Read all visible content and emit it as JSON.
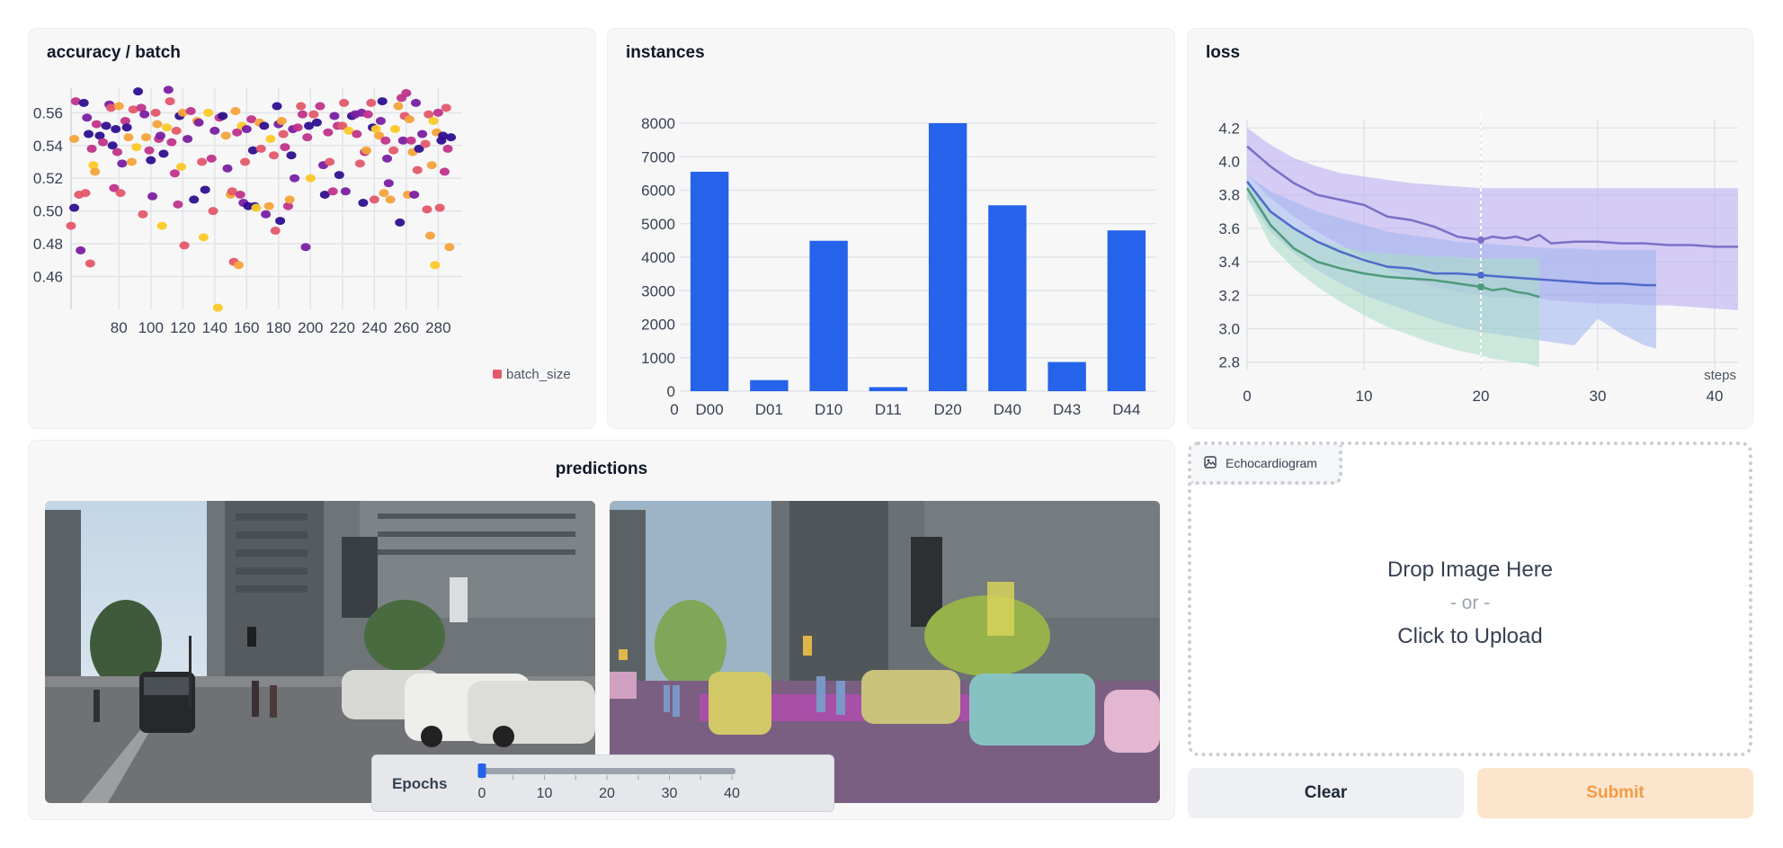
{
  "panels": {
    "accuracy": {
      "title": "accuracy / batch",
      "legend_label": "batch_size"
    },
    "instances": {
      "title": "instances"
    },
    "loss": {
      "title": "loss",
      "x_label": "steps"
    },
    "predictions": {
      "title": "predictions"
    }
  },
  "chart_data": [
    {
      "type": "scatter",
      "title": "accuracy / batch",
      "legend": [
        "batch_size"
      ],
      "xlim": [
        50,
        295
      ],
      "ylim": [
        0.44,
        0.575
      ],
      "x_ticks": [
        80,
        100,
        120,
        140,
        160,
        180,
        200,
        220,
        240,
        260,
        280
      ],
      "y_ticks": [
        "0.46",
        "0.48",
        "0.50",
        "0.52",
        "0.54",
        "0.56"
      ],
      "palette": [
        "#2e0f8f",
        "#7a1fa2",
        "#c0338a",
        "#e3596b",
        "#f4a33a",
        "#fbc926"
      ],
      "points": [
        [
          50,
          0.491,
          3
        ],
        [
          52,
          0.544,
          4
        ],
        [
          52,
          0.502,
          0
        ],
        [
          53,
          0.567,
          2
        ],
        [
          55,
          0.51,
          3
        ],
        [
          56,
          0.476,
          1
        ],
        [
          58,
          0.566,
          0
        ],
        [
          59,
          0.511,
          3
        ],
        [
          60,
          0.557,
          1
        ],
        [
          61,
          0.547,
          0
        ],
        [
          62,
          0.468,
          3
        ],
        [
          63,
          0.538,
          2
        ],
        [
          64,
          0.528,
          5
        ],
        [
          65,
          0.524,
          4
        ],
        [
          66,
          0.553,
          2
        ],
        [
          68,
          0.546,
          0
        ],
        [
          70,
          0.542,
          2
        ],
        [
          72,
          0.552,
          0
        ],
        [
          74,
          0.565,
          1
        ],
        [
          75,
          0.563,
          3
        ],
        [
          76,
          0.54,
          0
        ],
        [
          77,
          0.514,
          2
        ],
        [
          78,
          0.55,
          0
        ],
        [
          79,
          0.536,
          2
        ],
        [
          80,
          0.564,
          4
        ],
        [
          81,
          0.511,
          3
        ],
        [
          82,
          0.529,
          1
        ],
        [
          84,
          0.555,
          2
        ],
        [
          85,
          0.551,
          0
        ],
        [
          86,
          0.545,
          4
        ],
        [
          88,
          0.53,
          4
        ],
        [
          89,
          0.562,
          3
        ],
        [
          91,
          0.539,
          5
        ],
        [
          92,
          0.573,
          0
        ],
        [
          94,
          0.563,
          2
        ],
        [
          95,
          0.498,
          3
        ],
        [
          96,
          0.559,
          1
        ],
        [
          97,
          0.545,
          4
        ],
        [
          99,
          0.537,
          2
        ],
        [
          100,
          0.531,
          0
        ],
        [
          101,
          0.509,
          1
        ],
        [
          103,
          0.56,
          3
        ],
        [
          104,
          0.553,
          4
        ],
        [
          105,
          0.544,
          2
        ],
        [
          106,
          0.546,
          1
        ],
        [
          107,
          0.491,
          5
        ],
        [
          108,
          0.535,
          0
        ],
        [
          110,
          0.551,
          5
        ],
        [
          111,
          0.574,
          1
        ],
        [
          112,
          0.567,
          3
        ],
        [
          113,
          0.542,
          2
        ],
        [
          115,
          0.523,
          2
        ],
        [
          116,
          0.549,
          3
        ],
        [
          117,
          0.504,
          2
        ],
        [
          118,
          0.558,
          0
        ],
        [
          119,
          0.527,
          5
        ],
        [
          120,
          0.56,
          4
        ],
        [
          121,
          0.479,
          3
        ],
        [
          123,
          0.544,
          1
        ],
        [
          125,
          0.561,
          2
        ],
        [
          127,
          0.507,
          0
        ],
        [
          129,
          0.555,
          4
        ],
        [
          130,
          0.554,
          1
        ],
        [
          132,
          0.53,
          3
        ],
        [
          133,
          0.484,
          5
        ],
        [
          134,
          0.513,
          0
        ],
        [
          136,
          0.56,
          5
        ],
        [
          138,
          0.532,
          2
        ],
        [
          139,
          0.5,
          3
        ],
        [
          140,
          0.549,
          1
        ],
        [
          142,
          0.441,
          5
        ],
        [
          143,
          0.557,
          2
        ],
        [
          145,
          0.558,
          0
        ],
        [
          147,
          0.546,
          4
        ],
        [
          148,
          0.526,
          1
        ],
        [
          150,
          0.51,
          4
        ],
        [
          151,
          0.512,
          3
        ],
        [
          152,
          0.469,
          3
        ],
        [
          153,
          0.561,
          4
        ],
        [
          154,
          0.548,
          2
        ],
        [
          155,
          0.467,
          4
        ],
        [
          156,
          0.51,
          2
        ],
        [
          157,
          0.552,
          5
        ],
        [
          158,
          0.505,
          1
        ],
        [
          159,
          0.53,
          3
        ],
        [
          160,
          0.55,
          1
        ],
        [
          161,
          0.503,
          0
        ],
        [
          163,
          0.556,
          2
        ],
        [
          164,
          0.537,
          0
        ],
        [
          165,
          0.503,
          0
        ],
        [
          166,
          0.502,
          5
        ],
        [
          168,
          0.554,
          4
        ],
        [
          169,
          0.538,
          3
        ],
        [
          171,
          0.552,
          0
        ],
        [
          172,
          0.498,
          1
        ],
        [
          174,
          0.503,
          4
        ],
        [
          175,
          0.544,
          5
        ],
        [
          177,
          0.534,
          3
        ],
        [
          178,
          0.488,
          3
        ],
        [
          179,
          0.564,
          0
        ],
        [
          180,
          0.553,
          1
        ],
        [
          181,
          0.494,
          0
        ],
        [
          182,
          0.555,
          4
        ],
        [
          183,
          0.547,
          3
        ],
        [
          184,
          0.539,
          2
        ],
        [
          186,
          0.503,
          2
        ],
        [
          187,
          0.507,
          4
        ],
        [
          188,
          0.534,
          0
        ],
        [
          189,
          0.55,
          1
        ],
        [
          190,
          0.52,
          1
        ],
        [
          192,
          0.551,
          2
        ],
        [
          194,
          0.564,
          3
        ],
        [
          195,
          0.559,
          2
        ],
        [
          197,
          0.478,
          1
        ],
        [
          198,
          0.545,
          2
        ],
        [
          199,
          0.552,
          0
        ],
        [
          200,
          0.52,
          5
        ],
        [
          202,
          0.559,
          3
        ],
        [
          204,
          0.554,
          0
        ],
        [
          206,
          0.564,
          2
        ],
        [
          208,
          0.528,
          1
        ],
        [
          209,
          0.51,
          0
        ],
        [
          211,
          0.548,
          2
        ],
        [
          212,
          0.53,
          3
        ],
        [
          214,
          0.512,
          2
        ],
        [
          215,
          0.558,
          1
        ],
        [
          217,
          0.552,
          2
        ],
        [
          218,
          0.522,
          0
        ],
        [
          220,
          0.552,
          3
        ],
        [
          221,
          0.566,
          3
        ],
        [
          222,
          0.512,
          1
        ],
        [
          224,
          0.549,
          5
        ],
        [
          226,
          0.558,
          0
        ],
        [
          228,
          0.559,
          1
        ],
        [
          229,
          0.547,
          2
        ],
        [
          231,
          0.529,
          3
        ],
        [
          232,
          0.56,
          1
        ],
        [
          233,
          0.505,
          0
        ],
        [
          234,
          0.536,
          2
        ],
        [
          235,
          0.537,
          4
        ],
        [
          236,
          0.559,
          2
        ],
        [
          238,
          0.566,
          3
        ],
        [
          239,
          0.551,
          0
        ],
        [
          240,
          0.507,
          3
        ],
        [
          241,
          0.55,
          5
        ],
        [
          243,
          0.546,
          4
        ],
        [
          244,
          0.555,
          1
        ],
        [
          245,
          0.567,
          0
        ],
        [
          246,
          0.511,
          4
        ],
        [
          247,
          0.543,
          2
        ],
        [
          248,
          0.532,
          1
        ],
        [
          249,
          0.517,
          1
        ],
        [
          250,
          0.507,
          4
        ],
        [
          252,
          0.537,
          3
        ],
        [
          253,
          0.55,
          5
        ],
        [
          255,
          0.564,
          4
        ],
        [
          256,
          0.493,
          0
        ],
        [
          257,
          0.569,
          2
        ],
        [
          258,
          0.543,
          1
        ],
        [
          259,
          0.558,
          3
        ],
        [
          260,
          0.572,
          2
        ],
        [
          261,
          0.51,
          4
        ],
        [
          262,
          0.556,
          4
        ],
        [
          263,
          0.543,
          2
        ],
        [
          264,
          0.536,
          4
        ],
        [
          265,
          0.51,
          1
        ],
        [
          266,
          0.566,
          1
        ],
        [
          267,
          0.525,
          3
        ],
        [
          268,
          0.538,
          0
        ],
        [
          270,
          0.547,
          1
        ],
        [
          272,
          0.541,
          3
        ],
        [
          273,
          0.501,
          3
        ],
        [
          274,
          0.559,
          3
        ],
        [
          275,
          0.485,
          4
        ],
        [
          276,
          0.528,
          4
        ],
        [
          277,
          0.555,
          5
        ],
        [
          278,
          0.467,
          5
        ],
        [
          279,
          0.548,
          4
        ],
        [
          280,
          0.56,
          2
        ],
        [
          281,
          0.502,
          3
        ],
        [
          282,
          0.543,
          0
        ],
        [
          283,
          0.546,
          0
        ],
        [
          284,
          0.524,
          2
        ],
        [
          285,
          0.563,
          3
        ],
        [
          286,
          0.538,
          2
        ],
        [
          287,
          0.478,
          4
        ],
        [
          288,
          0.545,
          0
        ]
      ]
    },
    {
      "type": "bar",
      "title": "instances",
      "categories": [
        "D00",
        "D01",
        "D10",
        "D11",
        "D20",
        "D40",
        "D43",
        "D44"
      ],
      "values": [
        6550,
        330,
        4490,
        120,
        8000,
        5550,
        870,
        4800
      ],
      "ylim": [
        0,
        8000
      ],
      "y_ticks": [
        0,
        1000,
        2000,
        3000,
        4000,
        5000,
        6000,
        7000,
        8000
      ],
      "x_zero_label": "0",
      "color": "#2563eb"
    },
    {
      "type": "line",
      "title": "loss",
      "xlabel": "steps",
      "xlim": [
        0,
        42
      ],
      "ylim": [
        2.75,
        4.25
      ],
      "x_ticks": [
        0,
        10,
        20,
        30,
        40
      ],
      "y_ticks": [
        "2.8",
        "3.0",
        "3.2",
        "3.4",
        "3.6",
        "3.8",
        "4.0",
        "4.2"
      ],
      "cursor_x": 20,
      "series": [
        {
          "color": "#7c6fc7",
          "band_color": "#b8a9f0",
          "x": [
            0,
            2,
            4,
            6,
            8,
            10,
            12,
            14,
            16,
            18,
            20,
            21,
            22,
            23,
            24,
            25,
            26,
            28,
            30,
            32,
            34,
            36,
            38,
            40,
            42
          ],
          "y": [
            4.09,
            3.97,
            3.87,
            3.8,
            3.77,
            3.74,
            3.67,
            3.65,
            3.61,
            3.55,
            3.53,
            3.55,
            3.54,
            3.55,
            3.53,
            3.56,
            3.51,
            3.52,
            3.52,
            3.51,
            3.51,
            3.5,
            3.5,
            3.49,
            3.49
          ],
          "upper": [
            4.2,
            4.1,
            4.02,
            3.97,
            3.93,
            3.91,
            3.89,
            3.87,
            3.86,
            3.85,
            3.84,
            3.84,
            3.84,
            3.84,
            3.84,
            3.84,
            3.84,
            3.84,
            3.84,
            3.84,
            3.84,
            3.84,
            3.84,
            3.84,
            3.84
          ],
          "lower": [
            3.92,
            3.78,
            3.67,
            3.58,
            3.5,
            3.43,
            3.36,
            3.3,
            3.25,
            3.22,
            3.2,
            3.19,
            3.19,
            3.19,
            3.18,
            3.18,
            3.17,
            3.16,
            3.15,
            3.15,
            3.14,
            3.14,
            3.13,
            3.12,
            3.11
          ]
        },
        {
          "color": "#4f6ac8",
          "band_color": "#9fb4ee",
          "x": [
            0,
            2,
            4,
            6,
            8,
            10,
            12,
            14,
            16,
            18,
            20,
            22,
            24,
            26,
            28,
            30,
            32,
            34,
            35
          ],
          "y": [
            3.88,
            3.7,
            3.6,
            3.52,
            3.46,
            3.41,
            3.37,
            3.36,
            3.33,
            3.33,
            3.32,
            3.31,
            3.3,
            3.29,
            3.28,
            3.27,
            3.27,
            3.26,
            3.26
          ],
          "upper": [
            3.92,
            3.82,
            3.76,
            3.7,
            3.66,
            3.62,
            3.58,
            3.56,
            3.54,
            3.52,
            3.51,
            3.5,
            3.49,
            3.48,
            3.48,
            3.47,
            3.47,
            3.47,
            3.47
          ],
          "lower": [
            3.78,
            3.58,
            3.45,
            3.35,
            3.27,
            3.2,
            3.15,
            3.1,
            3.05,
            3.01,
            2.98,
            2.96,
            2.94,
            2.92,
            2.9,
            3.06,
            2.97,
            2.9,
            2.88
          ]
        },
        {
          "color": "#4e9a7a",
          "band_color": "#a9dcc4",
          "x": [
            0,
            2,
            4,
            6,
            8,
            10,
            12,
            14,
            16,
            18,
            20,
            21,
            22,
            23,
            24,
            25
          ],
          "y": [
            3.84,
            3.62,
            3.48,
            3.4,
            3.36,
            3.33,
            3.31,
            3.3,
            3.29,
            3.27,
            3.25,
            3.23,
            3.24,
            3.22,
            3.21,
            3.19
          ],
          "upper": [
            3.86,
            3.7,
            3.6,
            3.53,
            3.49,
            3.46,
            3.45,
            3.44,
            3.43,
            3.43,
            3.42,
            3.42,
            3.42,
            3.42,
            3.42,
            3.42
          ],
          "lower": [
            3.78,
            3.5,
            3.36,
            3.25,
            3.16,
            3.08,
            3.01,
            2.96,
            2.91,
            2.87,
            2.84,
            2.82,
            2.81,
            2.8,
            2.79,
            2.77
          ]
        }
      ]
    }
  ],
  "slider": {
    "label": "Epochs",
    "value": 0,
    "min": 0,
    "max": 40,
    "tick_labels": [
      "0",
      "10",
      "20",
      "30",
      "40"
    ]
  },
  "upload": {
    "tab_label": "Echocardiogram",
    "drop_text": "Drop Image Here",
    "or_text": "- or -",
    "click_text": "Click to Upload"
  },
  "buttons": {
    "clear": "Clear",
    "submit": "Submit"
  }
}
